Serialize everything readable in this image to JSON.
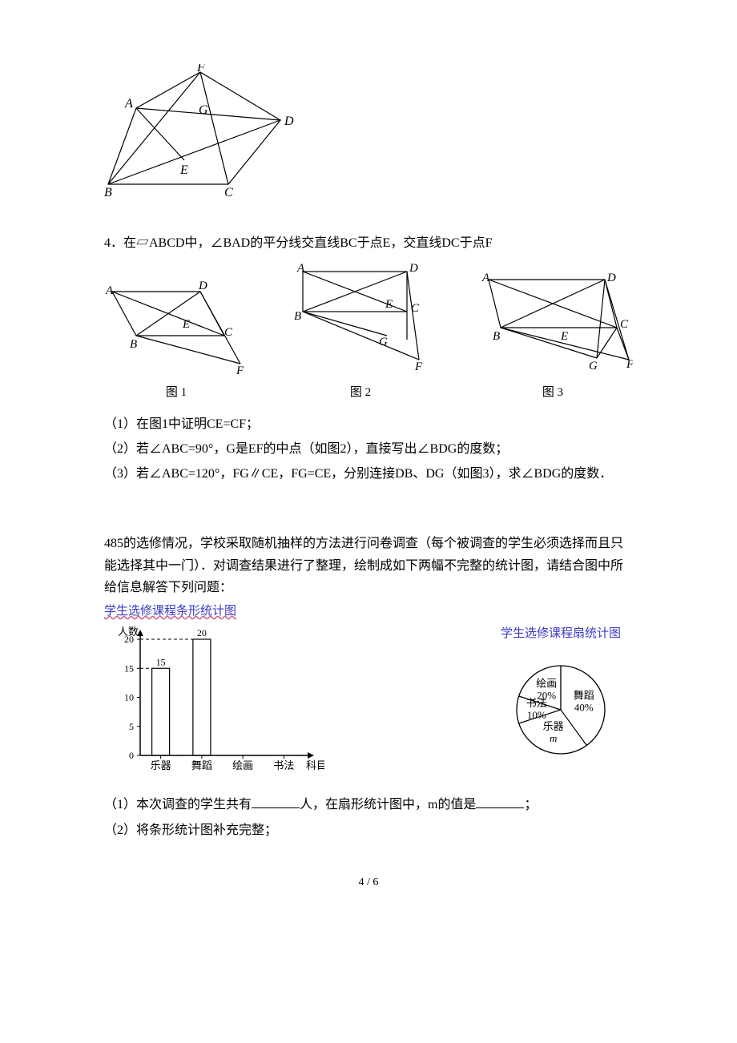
{
  "fig_top": {
    "labels": {
      "A": "A",
      "B": "B",
      "C": "C",
      "D": "D",
      "E": "E",
      "F": "F",
      "G": "G"
    },
    "stroke": "#000000",
    "stroke_width": 1.2
  },
  "q4": {
    "stem": "4．在▱ABCD中，∠BAD的平分线交直线BC于点E，交直线DC于点F",
    "sub1": "（1）在图1中证明CE=CF；",
    "sub2": "（2）若∠ABC=90°，G是EF的中点（如图2），直接写出∠BDG的度数；",
    "sub3": "（3）若∠ABC=120°，FG∥CE，FG=CE，分别连接DB、DG（如图3），求∠BDG的度数．",
    "captions": {
      "c1": "图 1",
      "c2": "图 2",
      "c3": "图 3"
    },
    "labels": {
      "A": "A",
      "B": "B",
      "C": "C",
      "D": "D",
      "E": "E",
      "F": "F",
      "G": "G"
    },
    "stroke": "#000000",
    "stroke_width": 1.2,
    "label_font": "italic 15px 'Times New Roman', serif"
  },
  "q5": {
    "para": "485的选修情况，学校采取随机抽样的方法进行问卷调查（每个被调查的学生必须选择而且只能选择其中一门）．对调查结果进行了整理，绘制成如下两幅不完整的统计图，请结合图中所给信息解答下列问题：",
    "bar_chart": {
      "title": "学生选修课程条形统计图",
      "x_label": "科目",
      "y_label": "人数",
      "y_ticks": [
        0,
        5,
        10,
        15,
        20
      ],
      "categories": [
        "乐器",
        "舞蹈",
        "绘画",
        "书法"
      ],
      "values": {
        "乐器": 15,
        "舞蹈": 20
      },
      "bar_color": "none",
      "bar_stroke": "#000000",
      "axis_color": "#000000",
      "guide_color": "#000000",
      "label_font": "13px 'SimSun', serif"
    },
    "pie_chart": {
      "title": "学生选修课程扇统计图",
      "slices": [
        {
          "label": "舞蹈",
          "value_text": "40%",
          "fraction": 0.4,
          "start_deg": -90,
          "fill": "none"
        },
        {
          "label": "乐器",
          "value_text": "m",
          "fraction": 0.3,
          "start_deg": 54,
          "fill": "none"
        },
        {
          "label": "书法",
          "value_text": "10%",
          "fraction": 0.1,
          "start_deg": 162,
          "fill": "none"
        },
        {
          "label": "绘画",
          "value_text": "20%",
          "fraction": 0.2,
          "start_deg": 198,
          "fill": "none"
        }
      ],
      "stroke": "#000000",
      "radius": 55,
      "label_font": "13px 'SimSun', serif"
    },
    "sub1_pre": "（1）本次调查的学生共有",
    "sub1_mid": "人，在扇形统计图中，m的值是",
    "sub1_end": "；",
    "sub2": "（2）将条形统计图补充完整；"
  },
  "footer": "4 / 6",
  "colors": {
    "text": "#000000",
    "title_blue": "#3a3ac4",
    "bg": "#ffffff"
  }
}
